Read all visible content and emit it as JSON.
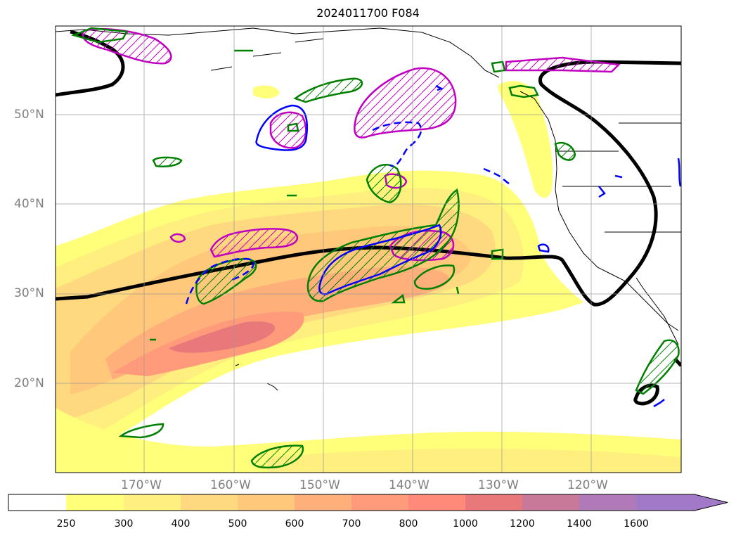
{
  "title": "2024011700 F084",
  "axes": {
    "lat_labels": [
      "50°N",
      "40°N",
      "30°N",
      "20°N"
    ],
    "lon_labels": [
      "170°W",
      "160°W",
      "150°W",
      "140°W",
      "130°W",
      "120°W"
    ]
  },
  "colorbar": {
    "ticks": [
      "250",
      "300",
      "400",
      "500",
      "600",
      "700",
      "800",
      "1000",
      "1200",
      "1400",
      "1600"
    ],
    "colors": [
      "#ffffff",
      "#ffff7a",
      "#ffef7f",
      "#ffd97f",
      "#ffc87a",
      "#ffb07a",
      "#ff9a7a",
      "#ff8a7a",
      "#e8787a",
      "#c87898",
      "#b07ab8",
      "#a07ac8"
    ],
    "extend": "max"
  },
  "overlay_colors": {
    "contour_black": "#000000",
    "contour_green": "#008000",
    "contour_blue": "#0000ff",
    "contour_magenta": "#c000c0"
  }
}
